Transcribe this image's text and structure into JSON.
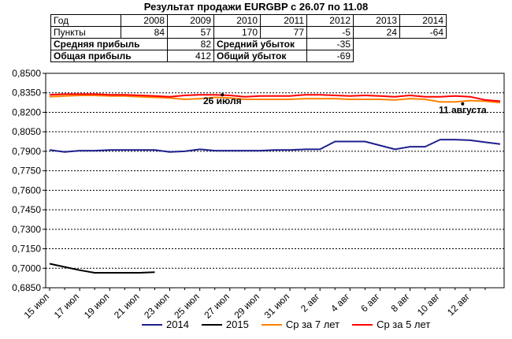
{
  "title": "Результат продажи EURGBP с 26.07 по 11.08",
  "table": {
    "row_year_label": "Год",
    "years": [
      "2008",
      "2009",
      "2010",
      "2011",
      "2012",
      "2013",
      "2014"
    ],
    "row_points_label": "Пункты",
    "points": [
      "84",
      "57",
      "170",
      "77",
      "-5",
      "24",
      "-64"
    ],
    "avg_profit_label": "Средняя прибыль",
    "avg_profit_value": "82",
    "avg_loss_label": "Средний убыток",
    "avg_loss_value": "-35",
    "total_profit_label": "Общая прибыль",
    "total_profit_value": "412",
    "total_loss_label": "Общий убыток",
    "total_loss_value": "-69"
  },
  "chart_data": {
    "type": "line",
    "title": "Результат продажи EURGBP с 26.07 по 11.08",
    "ylim": [
      0.685,
      0.85
    ],
    "y_ticks": [
      "0,8500",
      "0,8350",
      "0,8200",
      "0,8050",
      "0,7900",
      "0,7750",
      "0,7600",
      "0,7450",
      "0,7300",
      "0,7150",
      "0,7000",
      "0,6850"
    ],
    "x_tick_labels": [
      "15 июл",
      "17 июл",
      "19 июл",
      "21 июл",
      "23 июл",
      "25 июл",
      "27 июл",
      "29 июл",
      "31 июл",
      "2 авг",
      "4 авг",
      "6 авг",
      "8 авг",
      "10 авг",
      "12 авг"
    ],
    "grid": true,
    "legend_position": "bottom",
    "annotations": [
      {
        "text": "26 июля",
        "x_day": 11.5,
        "y": 0.8335
      },
      {
        "text": "11 августа",
        "x_day": 27.5,
        "y": 0.8265
      }
    ],
    "series": [
      {
        "name": "2014",
        "color": "#1f1f8f",
        "values": [
          0.791,
          0.7895,
          0.7905,
          0.7905,
          0.791,
          0.791,
          0.791,
          0.791,
          0.7895,
          0.79,
          0.7915,
          0.7905,
          0.7905,
          0.7905,
          0.7905,
          0.791,
          0.791,
          0.7915,
          0.7915,
          0.7975,
          0.7975,
          0.7975,
          0.7945,
          0.7915,
          0.7935,
          0.7935,
          0.799,
          0.799,
          0.7985,
          0.797,
          0.7955
        ]
      },
      {
        "name": "2015",
        "color": "#000000",
        "values": [
          0.7035,
          0.701,
          0.6985,
          0.6965,
          0.6965,
          0.6965,
          0.6965,
          0.697
        ]
      },
      {
        "name": "Ср за 7 лет",
        "color": "#ff8000",
        "values": [
          0.832,
          0.8325,
          0.833,
          0.833,
          0.8325,
          0.8325,
          0.832,
          0.8315,
          0.831,
          0.83,
          0.8305,
          0.8315,
          0.831,
          0.83,
          0.83,
          0.83,
          0.83,
          0.8305,
          0.8305,
          0.8305,
          0.83,
          0.83,
          0.83,
          0.8295,
          0.8305,
          0.83,
          0.828,
          0.828,
          0.829,
          0.8285,
          0.8275
        ]
      },
      {
        "name": "Ср за 5 лет",
        "color": "#ff0000",
        "values": [
          0.8335,
          0.834,
          0.834,
          0.834,
          0.8335,
          0.8335,
          0.833,
          0.8325,
          0.832,
          0.833,
          0.8335,
          0.8335,
          0.833,
          0.832,
          0.8325,
          0.8325,
          0.8325,
          0.8335,
          0.8335,
          0.833,
          0.8325,
          0.833,
          0.8325,
          0.832,
          0.833,
          0.832,
          0.832,
          0.8325,
          0.832,
          0.8295,
          0.8285
        ]
      }
    ]
  }
}
